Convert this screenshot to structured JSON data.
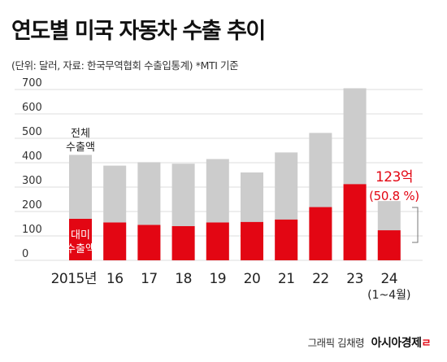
{
  "header": {
    "title": "연도별 미국 자동차 수출 추이",
    "subtitle": "(단위: 달러, 자료: 한국무역협회 수출입통계) *MTI 기준"
  },
  "chart_data": {
    "type": "bar",
    "categories": [
      "2015년",
      "16",
      "17",
      "18",
      "19",
      "20",
      "21",
      "22",
      "23",
      "24"
    ],
    "category_sublabels": [
      "",
      "",
      "",
      "",
      "",
      "",
      "",
      "",
      "",
      "(1~4월)"
    ],
    "series": [
      {
        "name": "전체 수출액",
        "values": [
          432,
          388,
          402,
          396,
          415,
          360,
          442,
          522,
          705,
          243
        ]
      },
      {
        "name": "대미 수출액",
        "values": [
          170,
          155,
          145,
          140,
          155,
          157,
          167,
          218,
          312,
          123
        ]
      }
    ],
    "y_ticks": [
      0,
      100,
      200,
      300,
      400,
      500,
      600,
      700
    ],
    "ylim": [
      0,
      700
    ],
    "grid": true,
    "stacking": "overlay",
    "colors": {
      "total": "#cccccc",
      "us": "#e30613",
      "grid": "#dddddd",
      "highlight_text": "#e30613"
    },
    "annotations": {
      "total_label_lines": [
        "전체",
        "수출액"
      ],
      "us_label_lines": [
        "대미",
        "수출액"
      ],
      "highlight_value": "123억",
      "highlight_share": "(50.8 %)"
    }
  },
  "footer": {
    "credit": "그래픽 김채령",
    "brand": "아시아경제",
    "brand_mark": "ㄹ"
  }
}
